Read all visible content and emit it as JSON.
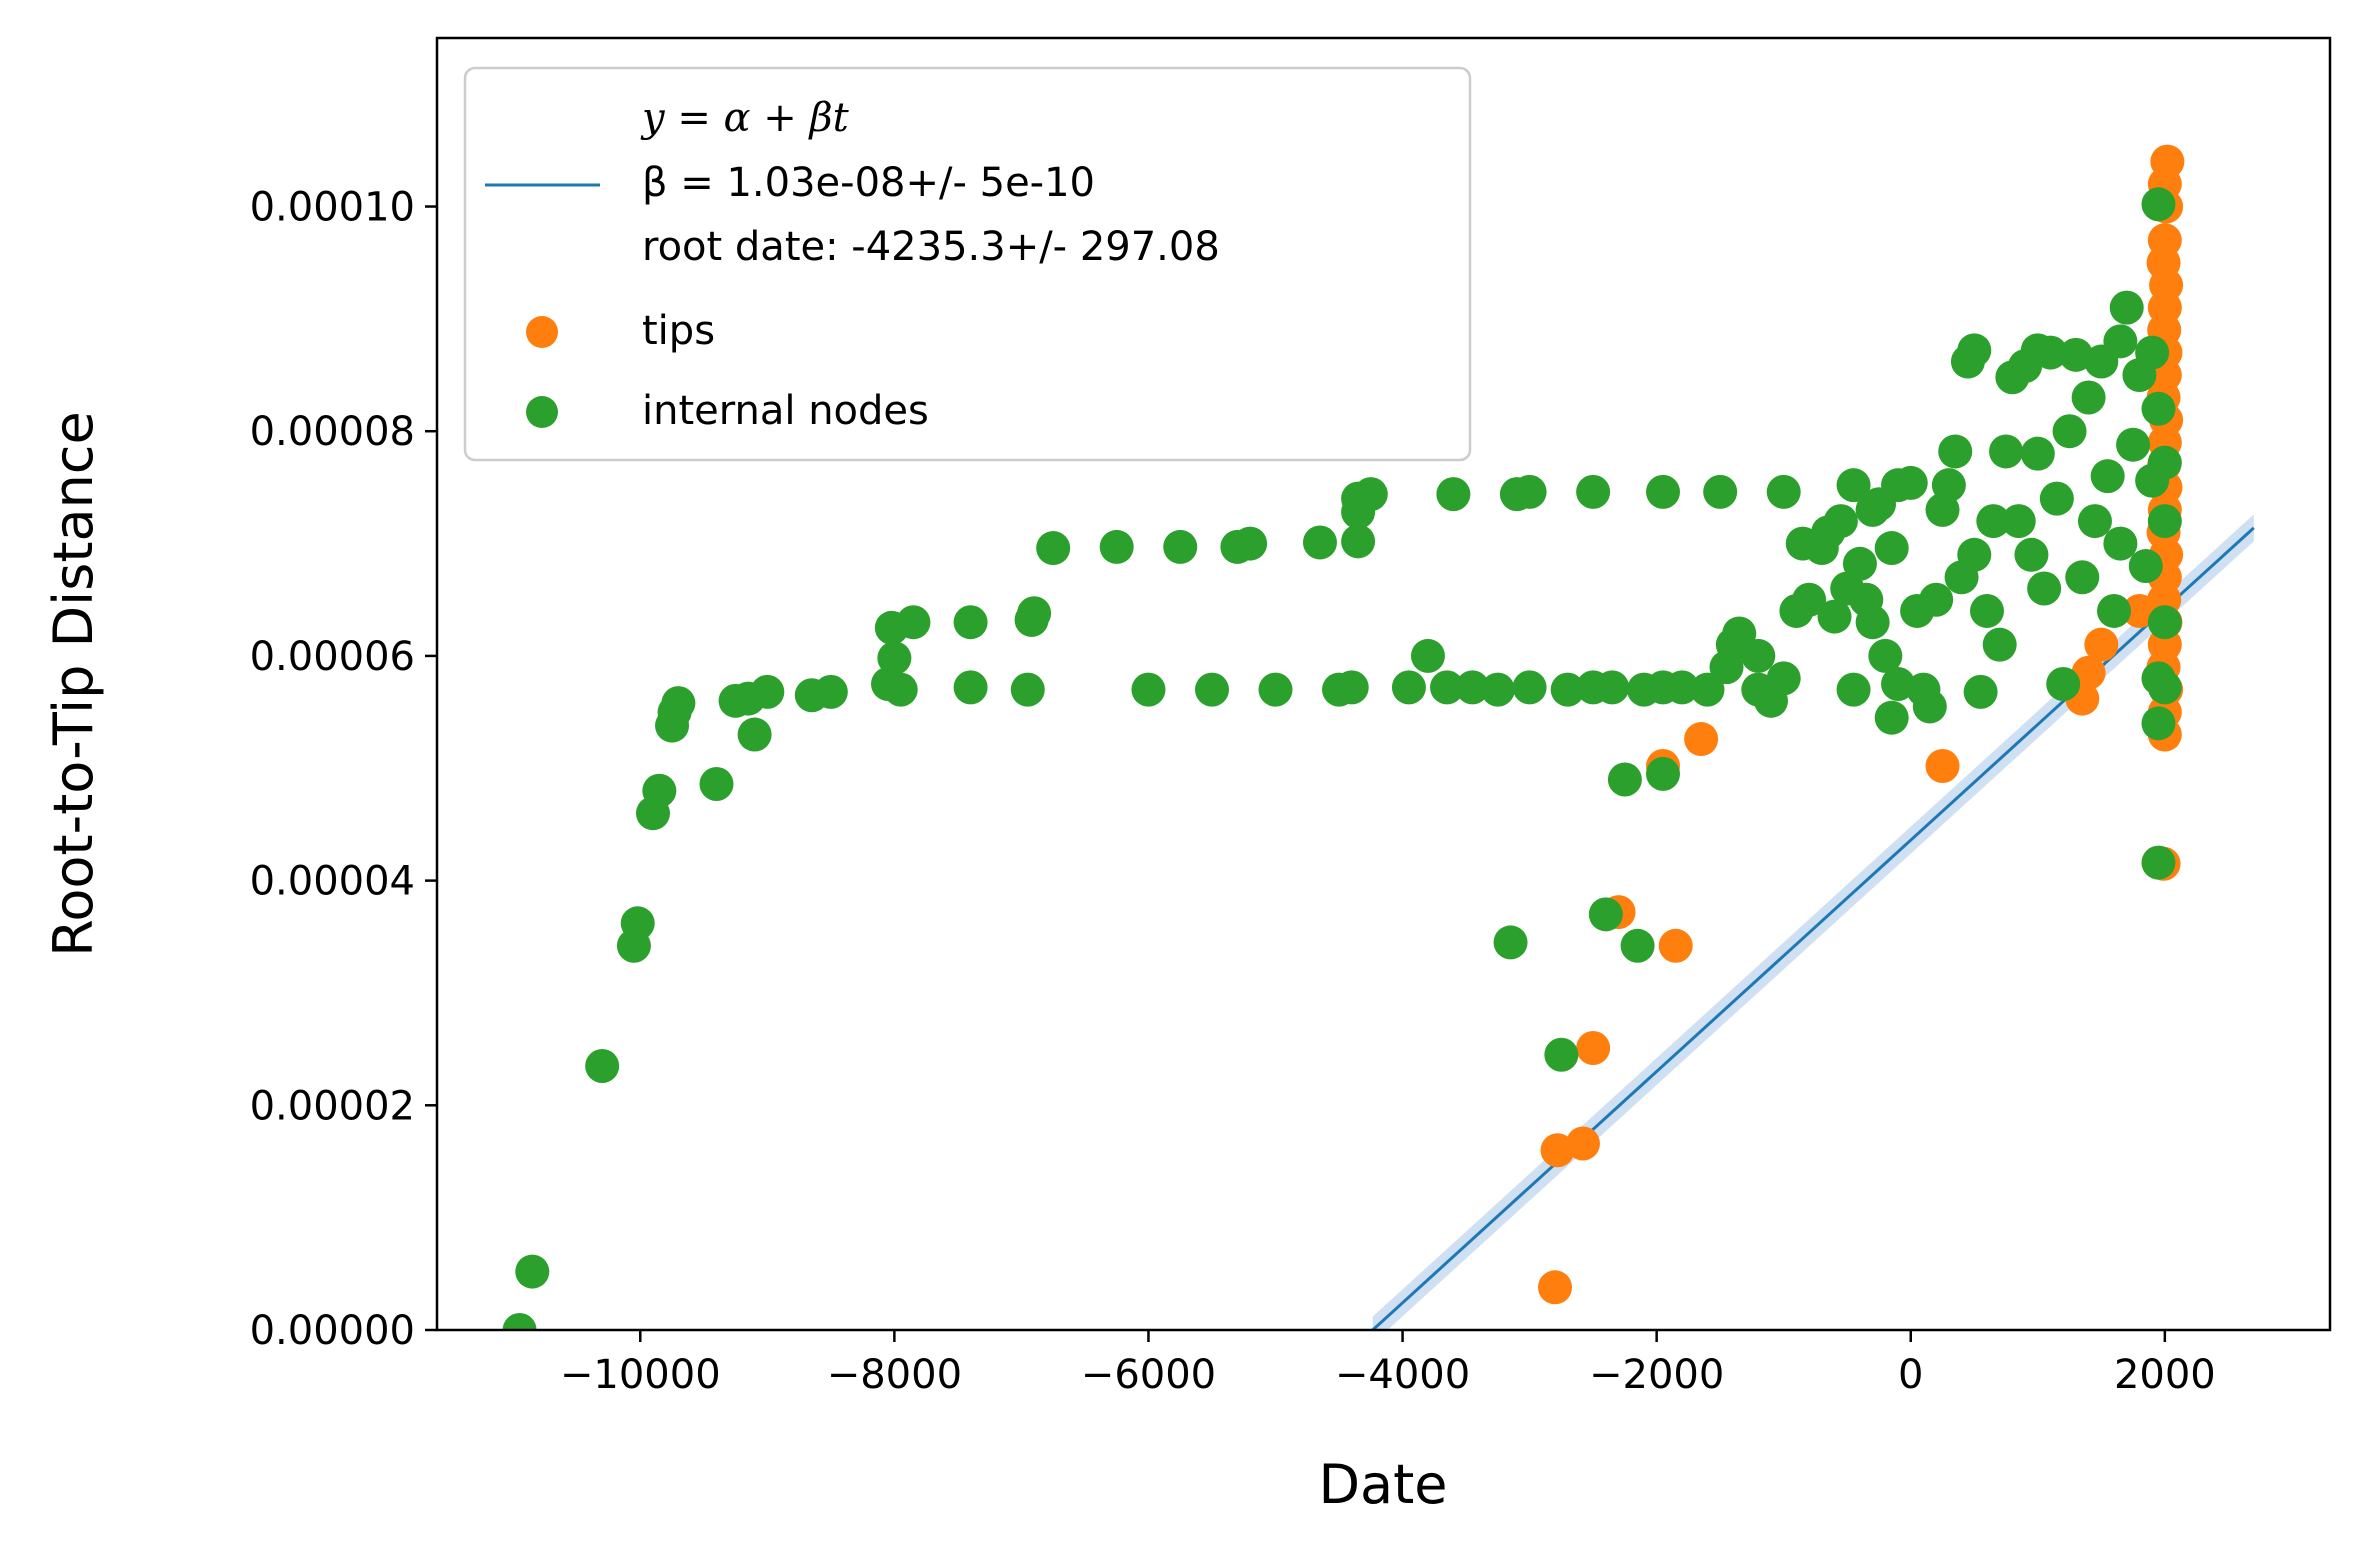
{
  "chart_data": {
    "type": "scatter",
    "xlabel": "Date",
    "ylabel": "Root-to-Tip Distance",
    "xlim": [
      -11600,
      3300
    ],
    "ylim": [
      0,
      0.000115
    ],
    "x_ticks": [
      -10000,
      -8000,
      -6000,
      -4000,
      -2000,
      0,
      2000
    ],
    "x_tick_labels": [
      "−10000",
      "−8000",
      "−6000",
      "−4000",
      "−2000",
      "0",
      "2000"
    ],
    "y_ticks": [
      0,
      2e-05,
      4e-05,
      6e-05,
      8e-05,
      0.0001
    ],
    "y_tick_labels": [
      "0.00000",
      "0.00002",
      "0.00004",
      "0.00006",
      "0.00008",
      "0.00010"
    ],
    "grid": false,
    "legend_position": "top-left",
    "legend": {
      "line_label_1": "y = α + βt",
      "line_label_2": "β = 1.03e-08+/- 5e-10",
      "line_label_3": "root date: -4235.3+/- 297.08",
      "tips_label": "tips",
      "internal_label": "internal nodes"
    },
    "colors": {
      "regression": "#1f77b4",
      "confidence": "#b9d3ec",
      "tips": "#ff7f0e",
      "internal": "#2ca02c"
    },
    "regression": {
      "x": [
        -4235,
        2700
      ],
      "y": [
        0,
        7.14e-05
      ],
      "band_halfwidth": 1.2e-06
    },
    "series": [
      {
        "name": "tips",
        "points": [
          [
            2020,
            0.000104
          ],
          [
            2000,
            0.000102
          ],
          [
            2010,
            0.0001
          ],
          [
            2000,
            9.7e-05
          ],
          [
            1990,
            9.5e-05
          ],
          [
            2010,
            9.3e-05
          ],
          [
            2000,
            9.1e-05
          ],
          [
            1995,
            8.9e-05
          ],
          [
            2005,
            8.7e-05
          ],
          [
            2000,
            8.5e-05
          ],
          [
            1990,
            8.3e-05
          ],
          [
            2010,
            8.1e-05
          ],
          [
            2000,
            7.9e-05
          ],
          [
            1995,
            7.7e-05
          ],
          [
            2005,
            7.5e-05
          ],
          [
            2000,
            7.3e-05
          ],
          [
            1990,
            7.1e-05
          ],
          [
            2010,
            6.9e-05
          ],
          [
            2000,
            6.7e-05
          ],
          [
            1995,
            6.5e-05
          ],
          [
            2005,
            6.3e-05
          ],
          [
            2000,
            6.1e-05
          ],
          [
            1990,
            5.9e-05
          ],
          [
            2010,
            5.7e-05
          ],
          [
            2000,
            5.5e-05
          ],
          [
            2000,
            5.3e-05
          ],
          [
            1990,
            4.15e-05
          ],
          [
            1800,
            6.4e-05
          ],
          [
            1500,
            6.1e-05
          ],
          [
            1400,
            5.85e-05
          ],
          [
            1350,
            5.62e-05
          ],
          [
            250,
            5.02e-05
          ],
          [
            -1650,
            5.26e-05
          ],
          [
            -1950,
            5.02e-05
          ],
          [
            -2300,
            3.72e-05
          ],
          [
            -1850,
            3.42e-05
          ],
          [
            -2500,
            2.51e-05
          ],
          [
            -2580,
            1.66e-05
          ],
          [
            -2780,
            1.6e-05
          ],
          [
            -2800,
            3.8e-06
          ]
        ]
      },
      {
        "name": "internal nodes",
        "points": [
          [
            -10950,
            0.0
          ],
          [
            -10850,
            5.2e-06
          ],
          [
            -10300,
            2.35e-05
          ],
          [
            -10050,
            3.42e-05
          ],
          [
            -10020,
            3.62e-05
          ],
          [
            -9900,
            4.6e-05
          ],
          [
            -9850,
            4.8e-05
          ],
          [
            -9750,
            5.38e-05
          ],
          [
            -9730,
            5.5e-05
          ],
          [
            -9700,
            5.58e-05
          ],
          [
            -9400,
            4.86e-05
          ],
          [
            -9250,
            5.6e-05
          ],
          [
            -9150,
            5.62e-05
          ],
          [
            -9100,
            5.3e-05
          ],
          [
            -9000,
            5.68e-05
          ],
          [
            -8650,
            5.65e-05
          ],
          [
            -8500,
            5.68e-05
          ],
          [
            -8050,
            5.75e-05
          ],
          [
            -8000,
            5.98e-05
          ],
          [
            -8020,
            6.25e-05
          ],
          [
            -7950,
            5.7e-05
          ],
          [
            -7850,
            6.3e-05
          ],
          [
            -7400,
            6.3e-05
          ],
          [
            -7400,
            5.72e-05
          ],
          [
            -6950,
            5.7e-05
          ],
          [
            -6920,
            6.32e-05
          ],
          [
            -6900,
            6.38e-05
          ],
          [
            -6750,
            6.96e-05
          ],
          [
            -6250,
            6.97e-05
          ],
          [
            -6000,
            5.7e-05
          ],
          [
            -5750,
            6.97e-05
          ],
          [
            -5500,
            5.7e-05
          ],
          [
            -5300,
            6.97e-05
          ],
          [
            -5200,
            7e-05
          ],
          [
            -5000,
            5.7e-05
          ],
          [
            -4650,
            7.01e-05
          ],
          [
            -4500,
            5.7e-05
          ],
          [
            -4400,
            5.72e-05
          ],
          [
            -4350,
            7.02e-05
          ],
          [
            -4350,
            7.28e-05
          ],
          [
            -4350,
            7.4e-05
          ],
          [
            -4250,
            7.44e-05
          ],
          [
            -3950,
            5.72e-05
          ],
          [
            -3800,
            6e-05
          ],
          [
            -3650,
            5.72e-05
          ],
          [
            -3600,
            7.44e-05
          ],
          [
            -3450,
            5.72e-05
          ],
          [
            -3250,
            5.7e-05
          ],
          [
            -3150,
            3.45e-05
          ],
          [
            -3100,
            7.44e-05
          ],
          [
            -3000,
            7.46e-05
          ],
          [
            -3000,
            5.72e-05
          ],
          [
            -2750,
            2.45e-05
          ],
          [
            -2700,
            5.7e-05
          ],
          [
            -2500,
            7.46e-05
          ],
          [
            -2500,
            5.72e-05
          ],
          [
            -2400,
            3.7e-05
          ],
          [
            -2250,
            4.9e-05
          ],
          [
            -2150,
            3.42e-05
          ],
          [
            -2100,
            5.7e-05
          ],
          [
            -1950,
            7.46e-05
          ],
          [
            -1950,
            5.72e-05
          ],
          [
            -1950,
            4.95e-05
          ],
          [
            -1800,
            5.72e-05
          ],
          [
            -1600,
            5.7e-05
          ],
          [
            -1500,
            7.46e-05
          ],
          [
            -1450,
            5.9e-05
          ],
          [
            -1400,
            6.1e-05
          ],
          [
            -1350,
            6.2e-05
          ],
          [
            -1200,
            6e-05
          ],
          [
            -1200,
            5.7e-05
          ],
          [
            -1000,
            7.46e-05
          ],
          [
            -1000,
            5.8e-05
          ],
          [
            -900,
            6.4e-05
          ],
          [
            -850,
            7e-05
          ],
          [
            -800,
            6.5e-05
          ],
          [
            -700,
            6.96e-05
          ],
          [
            -650,
            7.1e-05
          ],
          [
            -550,
            7.2e-05
          ],
          [
            -500,
            6.6e-05
          ],
          [
            -450,
            7.52e-05
          ],
          [
            -450,
            5.7e-05
          ],
          [
            -400,
            6.82e-05
          ],
          [
            -350,
            6.5e-05
          ],
          [
            -300,
            7.3e-05
          ],
          [
            -200,
            6e-05
          ],
          [
            -250,
            7.35e-05
          ],
          [
            -150,
            6.96e-05
          ],
          [
            -100,
            7.52e-05
          ],
          [
            -100,
            5.75e-05
          ],
          [
            0,
            7.54e-05
          ],
          [
            50,
            6.4e-05
          ],
          [
            100,
            5.7e-05
          ],
          [
            200,
            6.5e-05
          ],
          [
            250,
            7.3e-05
          ],
          [
            300,
            7.52e-05
          ],
          [
            350,
            7.82e-05
          ],
          [
            400,
            6.7e-05
          ],
          [
            450,
            8.62e-05
          ],
          [
            500,
            8.72e-05
          ],
          [
            500,
            6.9e-05
          ],
          [
            550,
            5.68e-05
          ],
          [
            600,
            6.4e-05
          ],
          [
            650,
            7.2e-05
          ],
          [
            700,
            6.1e-05
          ],
          [
            750,
            7.82e-05
          ],
          [
            800,
            8.48e-05
          ],
          [
            850,
            7.2e-05
          ],
          [
            900,
            8.58e-05
          ],
          [
            950,
            6.9e-05
          ],
          [
            1000,
            8.72e-05
          ],
          [
            1000,
            7.8e-05
          ],
          [
            1050,
            6.6e-05
          ],
          [
            1100,
            8.7e-05
          ],
          [
            1150,
            7.4e-05
          ],
          [
            1200,
            5.75e-05
          ],
          [
            1250,
            8e-05
          ],
          [
            1300,
            8.68e-05
          ],
          [
            1350,
            6.7e-05
          ],
          [
            1400,
            8.3e-05
          ],
          [
            1450,
            7.2e-05
          ],
          [
            1500,
            8.62e-05
          ],
          [
            1550,
            7.6e-05
          ],
          [
            1600,
            6.4e-05
          ],
          [
            1650,
            8.8e-05
          ],
          [
            1650,
            7e-05
          ],
          [
            1700,
            9.1e-05
          ],
          [
            1750,
            7.88e-05
          ],
          [
            1800,
            8.5e-05
          ],
          [
            1850,
            6.8e-05
          ],
          [
            1900,
            8.7e-05
          ],
          [
            1900,
            7.56e-05
          ],
          [
            1950,
            0.0001002
          ],
          [
            1950,
            8.2e-05
          ],
          [
            1950,
            5.8e-05
          ],
          [
            1950,
            5.4e-05
          ],
          [
            1950,
            4.16e-05
          ],
          [
            2000,
            7.72e-05
          ],
          [
            2000,
            7.2e-05
          ],
          [
            2000,
            6.3e-05
          ],
          [
            2000,
            5.72e-05
          ],
          [
            -300,
            6.3e-05
          ],
          [
            -150,
            5.45e-05
          ],
          [
            150,
            5.55e-05
          ],
          [
            -600,
            6.35e-05
          ],
          [
            -1100,
            5.6e-05
          ],
          [
            -2350,
            5.72e-05
          ]
        ]
      }
    ]
  }
}
